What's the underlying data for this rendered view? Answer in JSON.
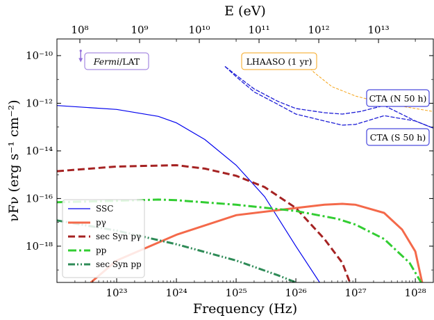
{
  "chart_data": {
    "type": "line",
    "xlabel": "Frequency (Hz)",
    "ylabel": "νFν (erg s⁻¹ cm⁻²)",
    "top_xlabel": "E (eV)",
    "xscale": "log",
    "yscale": "log",
    "xlim": [
      1e+22,
      2e+28
    ],
    "ylim": [
      3e-20,
      5e-10
    ],
    "x_ticks": [
      {
        "value": 1e+23,
        "label": "10²³"
      },
      {
        "value": 1e+24,
        "label": "10²⁴"
      },
      {
        "value": 1e+25,
        "label": "10²⁵"
      },
      {
        "value": 1e+26,
        "label": "10²⁶"
      },
      {
        "value": 1e+27,
        "label": "10²⁷"
      },
      {
        "value": 1e+28,
        "label": "10²⁸"
      }
    ],
    "y_ticks": [
      {
        "value": 1e-10,
        "label": "10⁻¹⁰"
      },
      {
        "value": 1e-12,
        "label": "10⁻¹²"
      },
      {
        "value": 1e-14,
        "label": "10⁻¹⁴"
      },
      {
        "value": 1e-16,
        "label": "10⁻¹⁶"
      },
      {
        "value": 1e-18,
        "label": "10⁻¹⁸"
      }
    ],
    "top_ticks": [
      {
        "value": 100000000.0,
        "label": "10⁸"
      },
      {
        "value": 1000000000.0,
        "label": "10⁹"
      },
      {
        "value": 10000000000.0,
        "label": "10¹⁰"
      },
      {
        "value": 100000000000.0,
        "label": "10¹¹"
      },
      {
        "value": 1000000000000.0,
        "label": "10¹²"
      },
      {
        "value": 10000000000000.0,
        "label": "10¹³"
      }
    ],
    "ev_to_hz": 241800000000000.0,
    "legend": {
      "position": "lower-left",
      "entries": [
        "SSC",
        "pγ",
        "sec Syn pγ",
        "pp",
        "sec Syn pp"
      ]
    },
    "series": [
      {
        "name": "SSC",
        "color": "#0000ee",
        "dash": "solid",
        "width": 1.2,
        "points": [
          [
            1e+22,
            8e-13
          ],
          [
            1e+23,
            5.5e-13
          ],
          [
            5e+23,
            2.8e-13
          ],
          [
            1e+24,
            1.5e-13
          ],
          [
            3e+24,
            3e-14
          ],
          [
            1e+25,
            2.5e-15
          ],
          [
            3e+25,
            1.2e-16
          ],
          [
            1e+26,
            1e-18
          ],
          [
            2.5e+26,
            3e-20
          ]
        ]
      },
      {
        "name": "pγ",
        "color": "#f4694a",
        "dash": "solid",
        "width": 3,
        "points": [
          [
            3.7e+22,
            3e-20
          ],
          [
            1e+23,
            2.5e-19
          ],
          [
            1e+24,
            3e-18
          ],
          [
            1e+25,
            2e-17
          ],
          [
            1e+26,
            4e-17
          ],
          [
            3e+26,
            5.5e-17
          ],
          [
            6e+26,
            6e-17
          ],
          [
            1e+27,
            5.5e-17
          ],
          [
            3e+27,
            2.5e-17
          ],
          [
            6e+27,
            5e-18
          ],
          [
            1e+28,
            6e-19
          ],
          [
            1.3e+28,
            3e-20
          ]
        ]
      },
      {
        "name": "sec Syn pγ",
        "color": "#a52222",
        "dash": "10,5",
        "width": 3,
        "points": [
          [
            1e+22,
            1.4e-15
          ],
          [
            1e+23,
            2.2e-15
          ],
          [
            1e+24,
            2.5e-15
          ],
          [
            3e+24,
            1.8e-15
          ],
          [
            1e+25,
            9e-16
          ],
          [
            3e+25,
            3e-16
          ],
          [
            1e+26,
            4e-17
          ],
          [
            3e+26,
            2e-18
          ],
          [
            6e+26,
            2e-19
          ],
          [
            8e+26,
            3e-20
          ]
        ]
      },
      {
        "name": "pp",
        "color": "#32cd32",
        "dash": "12,4,3,4",
        "width": 3,
        "points": [
          [
            1e+22,
            7e-17
          ],
          [
            1e+23,
            8e-17
          ],
          [
            5e+23,
            9e-17
          ],
          [
            1e+24,
            8.5e-17
          ],
          [
            1e+25,
            5.5e-17
          ],
          [
            1e+26,
            3e-17
          ],
          [
            5e+26,
            1.4e-17
          ],
          [
            1e+27,
            8e-18
          ],
          [
            3e+27,
            2e-18
          ],
          [
            8e+27,
            2e-19
          ],
          [
            1.25e+28,
            3e-20
          ]
        ]
      },
      {
        "name": "sec Syn pp",
        "color": "#2e8b57",
        "dash": "10,3,2,3,2,3",
        "width": 3,
        "points": [
          [
            1e+22,
            1.2e-17
          ],
          [
            1e+23,
            4.5e-18
          ],
          [
            1e+24,
            1.2e-18
          ],
          [
            1e+25,
            2.5e-19
          ],
          [
            5e+25,
            6e-20
          ],
          [
            1e+26,
            3e-20
          ]
        ]
      },
      {
        "name": "LHAASO (1 yr)",
        "color": "#f5a418",
        "dash": "4,2",
        "width": 1,
        "points": [
          [
            1e+26,
            1.3e-10
          ],
          [
            2e+26,
            2e-11
          ],
          [
            4e+26,
            5e-12
          ],
          [
            1e+27,
            2e-12
          ],
          [
            3e+27,
            1e-12
          ],
          [
            1e+28,
            6e-13
          ],
          [
            2e+28,
            4.5e-13
          ]
        ]
      },
      {
        "name": "CTA (N 50 h) upper",
        "color": "#1c1cd6",
        "dash": "6,2",
        "width": 1.3,
        "points": [
          [
            6.5e+24,
            3.5e-11
          ],
          [
            1e+25,
            1.5e-11
          ],
          [
            2e+25,
            4e-12
          ],
          [
            5e+25,
            1.2e-12
          ],
          [
            1e+26,
            6e-13
          ],
          [
            3e+26,
            4e-13
          ],
          [
            6e+26,
            3.5e-13
          ],
          [
            1.2e+27,
            4.5e-13
          ],
          [
            3e+27,
            8e-13
          ],
          [
            1e+28,
            1.8e-13
          ],
          [
            2e+28,
            9e-14
          ]
        ]
      },
      {
        "name": "CTA (S 50 h) lower",
        "color": "#1c1cd6",
        "dash": "6,2",
        "width": 1.3,
        "points": [
          [
            6.5e+24,
            3.5e-11
          ],
          [
            1e+25,
            1.3e-11
          ],
          [
            2e+25,
            3e-12
          ],
          [
            5e+25,
            9e-13
          ],
          [
            1e+26,
            3.5e-13
          ],
          [
            3e+26,
            1.8e-13
          ],
          [
            6e+26,
            1.2e-13
          ],
          [
            1e+27,
            1.3e-13
          ],
          [
            3e+27,
            3e-13
          ],
          [
            1e+28,
            1.8e-13
          ],
          [
            2e+28,
            9e-14
          ]
        ]
      }
    ],
    "annotations": {
      "fermi": {
        "italic_label": "Fermi",
        "rest_label": "/LAT",
        "border_color": "#9370db"
      },
      "lhaaso": {
        "label": "LHAASO (1 yr)",
        "border_color": "#f5a418"
      },
      "cta_north": {
        "label": "CTA (N 50 h)",
        "border_color": "#1c1cd6"
      },
      "cta_south": {
        "label": "CTA (S 50 h)",
        "border_color": "#1c1cd6"
      }
    },
    "fermi_marker": {
      "x": 2.5e+22,
      "y_top": 1.6e-10,
      "y_bottom": 6e-11,
      "color": "#9370db"
    }
  }
}
